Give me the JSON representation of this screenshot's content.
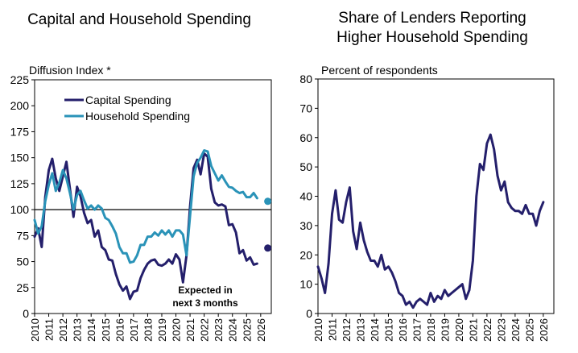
{
  "chart_data": [
    {
      "type": "line",
      "title": "Capital and Household Spending",
      "ylabel": "Diffusion Index *",
      "ylim": [
        0,
        225
      ],
      "yticks": [
        0,
        25,
        50,
        75,
        100,
        125,
        150,
        175,
        200,
        225
      ],
      "xticks": [
        "2010",
        "2011",
        "2012",
        "2013",
        "2014",
        "2015",
        "2016",
        "2017",
        "2018",
        "2019",
        "2020",
        "2021",
        "2022",
        "2023",
        "2024",
        "2025",
        "2026"
      ],
      "reference_line": 100,
      "annotation": "Expected in next 3 months",
      "series": [
        {
          "name": "Capital Spending",
          "color": "#241f6b",
          "x": [
            2010.0,
            2010.25,
            2010.5,
            2010.75,
            2011.0,
            2011.25,
            2011.5,
            2011.75,
            2012.0,
            2012.25,
            2012.5,
            2012.75,
            2013.0,
            2013.25,
            2013.5,
            2013.75,
            2014.0,
            2014.25,
            2014.5,
            2014.75,
            2015.0,
            2015.25,
            2015.5,
            2015.75,
            2016.0,
            2016.25,
            2016.5,
            2016.75,
            2017.0,
            2017.25,
            2017.5,
            2017.75,
            2018.0,
            2018.25,
            2018.5,
            2018.75,
            2019.0,
            2019.25,
            2019.5,
            2019.75,
            2020.0,
            2020.25,
            2020.5,
            2020.75,
            2021.0,
            2021.25,
            2021.5,
            2021.75,
            2022.0,
            2022.25,
            2022.5,
            2022.75,
            2023.0,
            2023.25,
            2023.5,
            2023.75,
            2024.0,
            2024.25,
            2024.5,
            2024.75,
            2025.0,
            2025.25,
            2025.5,
            2025.75
          ],
          "values": [
            74,
            82,
            64,
            112,
            138,
            149,
            130,
            118,
            132,
            146,
            120,
            93,
            122,
            113,
            97,
            87,
            90,
            74,
            80,
            64,
            61,
            52,
            51,
            38,
            28,
            22,
            26,
            14,
            21,
            22,
            34,
            42,
            48,
            51,
            52,
            47,
            46,
            48,
            52,
            48,
            57,
            52,
            30,
            56,
            103,
            140,
            148,
            134,
            154,
            151,
            120,
            107,
            104,
            105,
            103,
            85,
            86,
            78,
            58,
            61,
            51,
            54,
            47,
            48
          ],
          "expected": 63
        },
        {
          "name": "Household Spending",
          "color": "#2a93b8",
          "x": [
            2010.0,
            2010.25,
            2010.5,
            2010.75,
            2011.0,
            2011.25,
            2011.5,
            2011.75,
            2012.0,
            2012.25,
            2012.5,
            2012.75,
            2013.0,
            2013.25,
            2013.5,
            2013.75,
            2014.0,
            2014.25,
            2014.5,
            2014.75,
            2015.0,
            2015.25,
            2015.5,
            2015.75,
            2016.0,
            2016.25,
            2016.5,
            2016.75,
            2017.0,
            2017.25,
            2017.5,
            2017.75,
            2018.0,
            2018.25,
            2018.5,
            2018.75,
            2019.0,
            2019.25,
            2019.5,
            2019.75,
            2020.0,
            2020.25,
            2020.5,
            2020.75,
            2021.0,
            2021.25,
            2021.5,
            2021.75,
            2022.0,
            2022.25,
            2022.5,
            2022.75,
            2023.0,
            2023.25,
            2023.5,
            2023.75,
            2024.0,
            2024.25,
            2024.5,
            2024.75,
            2025.0,
            2025.25,
            2025.5,
            2025.75
          ],
          "values": [
            90,
            77,
            84,
            108,
            124,
            135,
            118,
            126,
            138,
            130,
            116,
            100,
            114,
            118,
            109,
            101,
            104,
            100,
            104,
            101,
            92,
            90,
            84,
            77,
            64,
            58,
            58,
            49,
            50,
            56,
            66,
            66,
            74,
            74,
            78,
            75,
            80,
            76,
            80,
            74,
            80,
            80,
            76,
            56,
            94,
            132,
            145,
            150,
            157,
            156,
            142,
            135,
            128,
            133,
            127,
            122,
            121,
            118,
            116,
            117,
            112,
            112,
            116,
            111
          ],
          "expected": 108
        }
      ]
    },
    {
      "type": "line",
      "title": "Share of Lenders Reporting Higher Household Spending",
      "title_lines": [
        "Share of Lenders Reporting",
        "Higher Household Spending"
      ],
      "ylabel": "Percent of respondents",
      "ylim": [
        0,
        80
      ],
      "yticks": [
        0,
        10,
        20,
        30,
        40,
        50,
        60,
        70,
        80
      ],
      "xticks": [
        "2010",
        "2011",
        "2012",
        "2013",
        "2014",
        "2015",
        "2016",
        "2017",
        "2018",
        "2019",
        "2020",
        "2021",
        "2022",
        "2023",
        "2024",
        "2025",
        "2026"
      ],
      "series": [
        {
          "color": "#241f6b",
          "x": [
            2010.0,
            2010.25,
            2010.5,
            2010.75,
            2011.0,
            2011.25,
            2011.5,
            2011.75,
            2012.0,
            2012.25,
            2012.5,
            2012.75,
            2013.0,
            2013.25,
            2013.5,
            2013.75,
            2014.0,
            2014.25,
            2014.5,
            2014.75,
            2015.0,
            2015.25,
            2015.5,
            2015.75,
            2016.0,
            2016.25,
            2016.5,
            2016.75,
            2017.0,
            2017.25,
            2017.5,
            2017.75,
            2018.0,
            2018.25,
            2018.5,
            2018.75,
            2019.0,
            2019.25,
            2019.5,
            2019.75,
            2020.0,
            2020.25,
            2020.5,
            2020.75,
            2021.0,
            2021.25,
            2021.5,
            2021.75,
            2022.0,
            2022.25,
            2022.5,
            2022.75,
            2023.0,
            2023.25,
            2023.5,
            2023.75,
            2024.0,
            2024.25,
            2024.5,
            2024.75,
            2025.0,
            2025.25,
            2025.5,
            2025.75,
            2026.0
          ],
          "values": [
            16,
            12,
            7,
            17,
            34,
            42,
            32,
            31,
            38,
            43,
            28,
            22,
            31,
            25,
            21,
            18,
            18,
            16,
            20,
            15,
            16,
            14,
            11,
            7,
            6,
            3,
            4,
            2,
            4,
            5,
            4,
            3,
            7,
            4,
            6,
            5,
            8,
            6,
            7,
            8,
            9,
            10,
            5,
            8,
            18,
            40,
            51,
            49,
            58,
            61,
            56,
            47,
            42,
            45,
            38,
            36,
            35,
            35,
            34,
            37,
            34,
            34,
            30,
            35,
            38
          ]
        }
      ]
    }
  ]
}
